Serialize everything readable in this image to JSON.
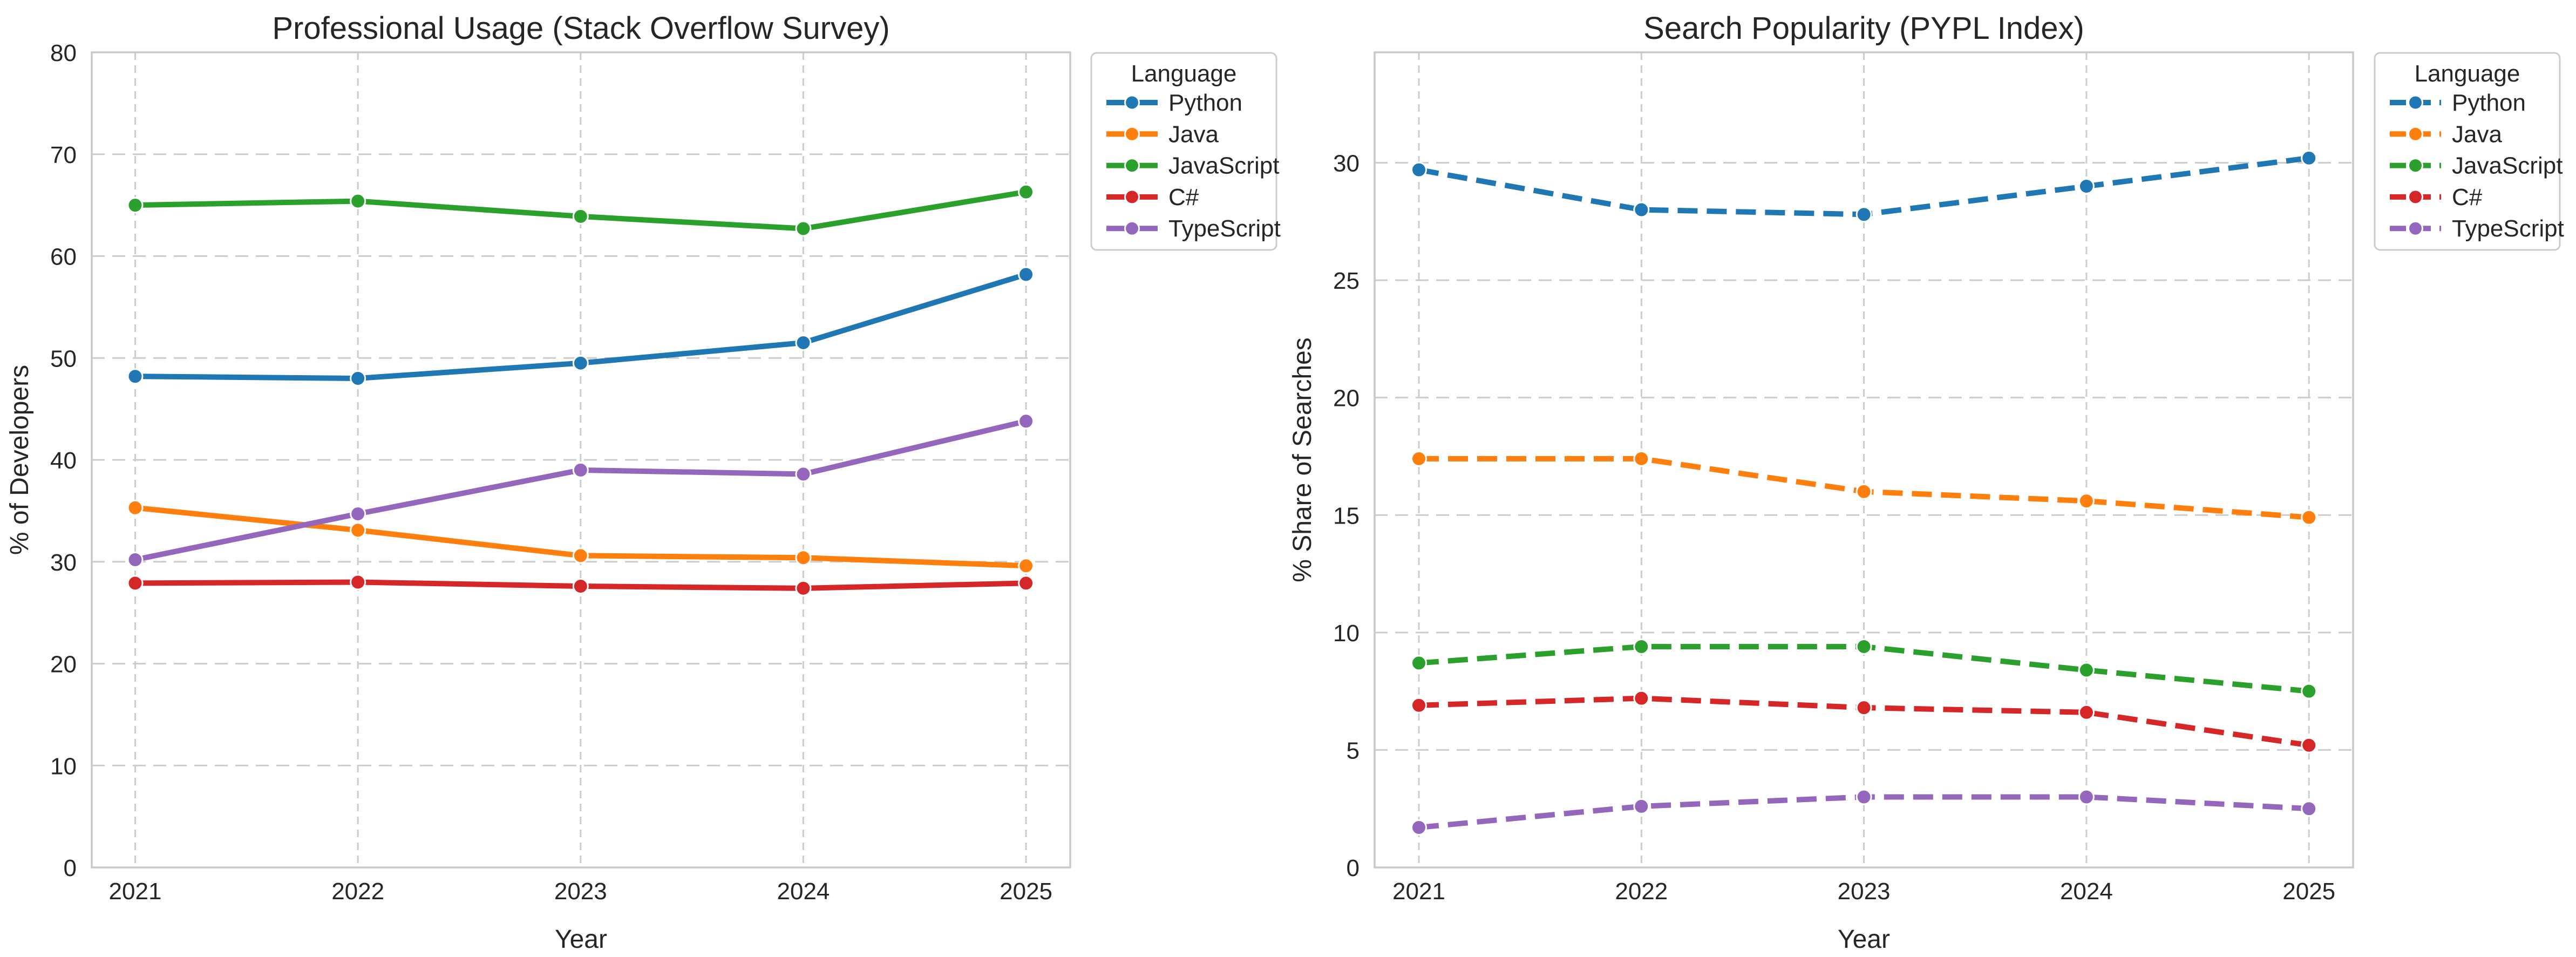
{
  "chart_data": [
    {
      "type": "line",
      "title": "Professional Usage (Stack Overflow Survey)",
      "xlabel": "Year",
      "ylabel": "% of Developers",
      "legend_title": "Language",
      "legend_position": "outside upper-right",
      "grid": true,
      "line_style": "solid",
      "x": [
        2021,
        2022,
        2023,
        2024,
        2025
      ],
      "yticks": [
        0,
        10,
        20,
        30,
        40,
        50,
        60,
        70,
        80
      ],
      "ylim": [
        0,
        80
      ],
      "series": [
        {
          "name": "Python",
          "color": "#1f77b4",
          "values": [
            48.2,
            48.0,
            49.5,
            51.5,
            58.2
          ]
        },
        {
          "name": "Java",
          "color": "#ff7f0e",
          "values": [
            35.3,
            33.1,
            30.6,
            30.4,
            29.6
          ]
        },
        {
          "name": "JavaScript",
          "color": "#2ca02c",
          "values": [
            65.0,
            65.4,
            63.9,
            62.7,
            66.3
          ]
        },
        {
          "name": "C#",
          "color": "#d62728",
          "values": [
            27.9,
            28.0,
            27.6,
            27.4,
            27.9
          ]
        },
        {
          "name": "TypeScript",
          "color": "#9467bd",
          "values": [
            30.2,
            34.7,
            39.0,
            38.6,
            43.8
          ]
        }
      ]
    },
    {
      "type": "line",
      "title": "Search Popularity (PYPL Index)",
      "xlabel": "Year",
      "ylabel": "% Share of Searches",
      "legend_title": "Language",
      "legend_position": "outside upper-right",
      "grid": true,
      "line_style": "dashed",
      "x": [
        2021,
        2022,
        2023,
        2024,
        2025
      ],
      "yticks": [
        0,
        5,
        10,
        15,
        20,
        25,
        30
      ],
      "ylim": [
        0,
        34.7
      ],
      "series": [
        {
          "name": "Python",
          "color": "#1f77b4",
          "values": [
            29.7,
            28.0,
            27.8,
            29.0,
            30.2
          ]
        },
        {
          "name": "Java",
          "color": "#ff7f0e",
          "values": [
            17.4,
            17.4,
            16.0,
            15.6,
            14.9
          ]
        },
        {
          "name": "JavaScript",
          "color": "#2ca02c",
          "values": [
            8.7,
            9.4,
            9.4,
            8.4,
            7.5
          ]
        },
        {
          "name": "C#",
          "color": "#d62728",
          "values": [
            6.9,
            7.2,
            6.8,
            6.6,
            5.2
          ]
        },
        {
          "name": "TypeScript",
          "color": "#9467bd",
          "values": [
            1.7,
            2.6,
            3.0,
            3.0,
            2.5
          ]
        }
      ]
    }
  ],
  "style": {
    "spine_color": "#c8c8c8",
    "grid_color": "#cccccc",
    "text_color": "#262626",
    "background": "#ffffff"
  }
}
